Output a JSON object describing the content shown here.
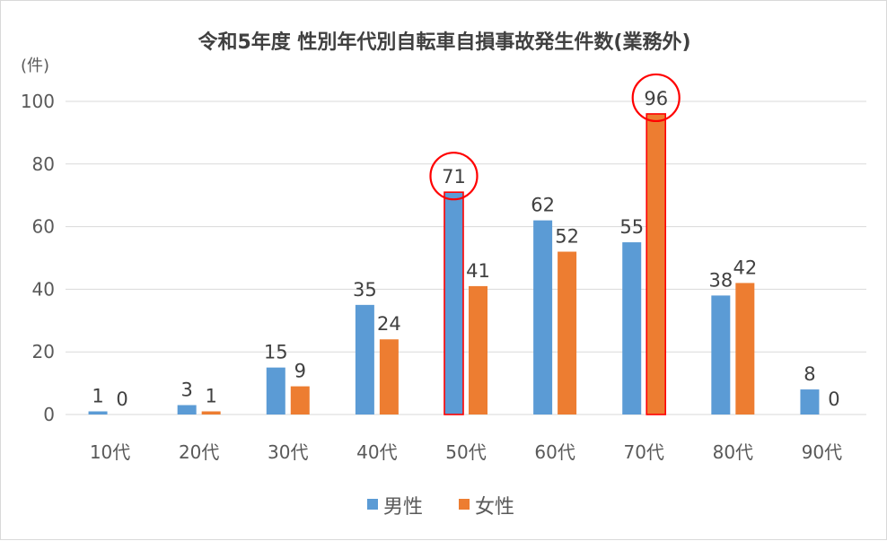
{
  "chart_data": {
    "type": "bar",
    "title": "令和5年度 性別年代別自転車自損事故発生件数(業務外)",
    "unit": "(件)",
    "categories": [
      "10代",
      "20代",
      "30代",
      "40代",
      "50代",
      "60代",
      "70代",
      "80代",
      "90代"
    ],
    "series": [
      {
        "name": "男性",
        "color": "#5b9bd5",
        "values": [
          1,
          3,
          15,
          35,
          71,
          62,
          55,
          38,
          8
        ]
      },
      {
        "name": "女性",
        "color": "#ed7d31",
        "values": [
          0,
          1,
          9,
          24,
          41,
          52,
          96,
          42,
          0
        ]
      }
    ],
    "ylim": [
      0,
      100
    ],
    "yticks": [
      0,
      20,
      40,
      60,
      80,
      100
    ],
    "grid": true,
    "legend": "bottom",
    "highlights": [
      {
        "series": 0,
        "category": "50代",
        "value": 71
      },
      {
        "series": 1,
        "category": "70代",
        "value": 96
      }
    ],
    "highlight_color": "#ff0000"
  }
}
